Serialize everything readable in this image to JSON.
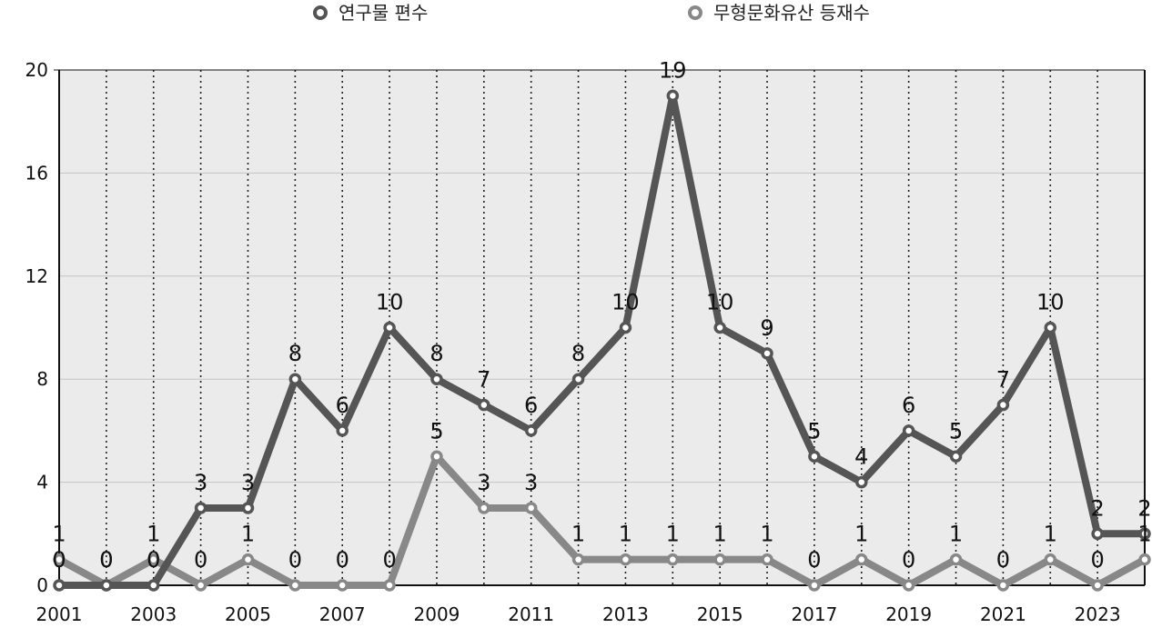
{
  "chart_data": {
    "type": "line",
    "title": "",
    "xlabel": "",
    "ylabel": "",
    "x": [
      2001,
      2002,
      2003,
      2004,
      2005,
      2006,
      2007,
      2008,
      2009,
      2010,
      2011,
      2012,
      2013,
      2014,
      2015,
      2016,
      2017,
      2018,
      2019,
      2020,
      2021,
      2022,
      2023,
      2024
    ],
    "x_tick_labels": [
      "2001",
      "2003",
      "2005",
      "2007",
      "2009",
      "2011",
      "2013",
      "2015",
      "2017",
      "2019",
      "2021",
      "2023"
    ],
    "y_ticks": [
      0,
      4,
      8,
      12,
      16,
      20
    ],
    "ylim": [
      0,
      20
    ],
    "grid": true,
    "legend_position": "top",
    "series": [
      {
        "name": "연구물 편수",
        "color": "#555555",
        "values": [
          0,
          0,
          0,
          3,
          3,
          8,
          6,
          10,
          8,
          7,
          6,
          8,
          10,
          19,
          10,
          9,
          5,
          4,
          6,
          5,
          7,
          10,
          2,
          2
        ]
      },
      {
        "name": "무형문화유산 등재수",
        "color": "#888888",
        "values": [
          1,
          0,
          1,
          0,
          1,
          0,
          0,
          0,
          5,
          3,
          3,
          1,
          1,
          1,
          1,
          1,
          0,
          1,
          0,
          1,
          0,
          1,
          0,
          1
        ]
      }
    ]
  }
}
